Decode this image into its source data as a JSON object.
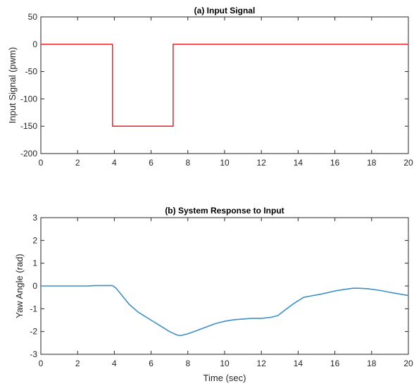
{
  "chart_data": [
    {
      "type": "line",
      "title": "(a) Input Signal",
      "xlabel": "",
      "ylabel": "Input Signal (pwm)",
      "xlim": [
        0,
        20
      ],
      "ylim": [
        -200,
        50
      ],
      "xticks": [
        0,
        2,
        4,
        6,
        8,
        10,
        12,
        14,
        16,
        18,
        20
      ],
      "yticks": [
        50,
        0,
        -50,
        -100,
        -150,
        -200
      ],
      "grid": false,
      "series": [
        {
          "color": "#e8303a",
          "x": [
            0,
            3.9,
            3.9,
            7.2,
            7.2,
            20
          ],
          "y": [
            0,
            0,
            -150,
            -150,
            0,
            0
          ]
        }
      ]
    },
    {
      "type": "line",
      "title": "(b) System Response to Input",
      "xlabel": "Time (sec)",
      "ylabel": "Yaw Angle (rad)",
      "xlim": [
        0,
        20
      ],
      "ylim": [
        -3,
        3
      ],
      "xticks": [
        0,
        2,
        4,
        6,
        8,
        10,
        12,
        14,
        16,
        18,
        20
      ],
      "yticks": [
        3,
        2,
        1,
        0,
        -1,
        -2,
        -3
      ],
      "grid": false,
      "series": [
        {
          "color": "#3d8fc6",
          "x": [
            0,
            1,
            2,
            2.5,
            3,
            3.5,
            3.9,
            4.1,
            4.4,
            4.8,
            5.3,
            6,
            6.5,
            7,
            7.4,
            7.6,
            8,
            8.5,
            9,
            9.5,
            10,
            10.5,
            11,
            11.5,
            12,
            12.5,
            12.9,
            13.3,
            13.8,
            14.3,
            14.8,
            15.3,
            16,
            16.5,
            17,
            17.3,
            17.8,
            18.5,
            19,
            19.5,
            20
          ],
          "y": [
            0.0,
            0.0,
            0.0,
            0.0,
            0.02,
            0.02,
            0.02,
            -0.1,
            -0.4,
            -0.8,
            -1.15,
            -1.5,
            -1.75,
            -2.0,
            -2.15,
            -2.18,
            -2.1,
            -1.95,
            -1.8,
            -1.65,
            -1.55,
            -1.48,
            -1.45,
            -1.42,
            -1.42,
            -1.38,
            -1.3,
            -1.05,
            -0.75,
            -0.5,
            -0.42,
            -0.35,
            -0.22,
            -0.15,
            -0.1,
            -0.1,
            -0.12,
            -0.2,
            -0.28,
            -0.35,
            -0.42
          ]
        }
      ]
    }
  ]
}
